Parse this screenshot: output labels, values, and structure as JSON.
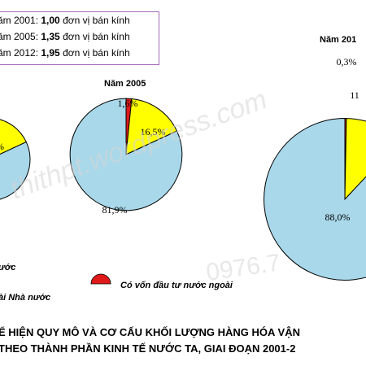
{
  "scale_note": [
    {
      "prefix": "ăm 2001: ",
      "value": "1,00",
      "suffix": " đơn vị bán kính"
    },
    {
      "prefix": "ăm 2005: ",
      "value": "1,35",
      "suffix": " đơn vị bán kính"
    },
    {
      "prefix": "ăm 2012: ",
      "value": "1,95",
      "suffix": " đơn vị bán kính"
    }
  ],
  "chart_data": {
    "type": "pie",
    "title_lines": [
      "Ể HIỆN QUY MÔ VÀ CƠ CẤU KHỐI LƯỢNG HÀNG HÓA VẬN",
      "THEO THÀNH PHẦN KINH TẾ NƯỚC TA, GIAI ĐOẠN 2001-2"
    ],
    "categories": [
      "Nhà nước",
      "Ngoài Nhà nước",
      "Có vốn đầu tư nước ngoài"
    ],
    "colors": {
      "Nhà nước": "#a8d8ea",
      "Ngoài Nhà nước": "#ffff00",
      "Có vốn đầu tư nước ngoài": "#e0191b"
    },
    "pies": [
      {
        "year_label": "",
        "radius_units": 1.0,
        "slices": [
          {
            "category": "Nhà nước",
            "value": 81.9,
            "label": ""
          },
          {
            "category": "Ngoài Nhà nước",
            "value": 16.5,
            "label": "%"
          },
          {
            "category": "Có vốn đầu tư nước ngoài",
            "value": 1.6,
            "label": ""
          }
        ]
      },
      {
        "year_label": "Năm 2005",
        "radius_units": 1.35,
        "slices": [
          {
            "category": "Nhà nước",
            "value": 81.9,
            "label": "81,9%"
          },
          {
            "category": "Ngoài Nhà nước",
            "value": 16.5,
            "label": "16,5%"
          },
          {
            "category": "Có vốn đầu tư nước ngoài",
            "value": 1.6,
            "label": "1,6%"
          }
        ]
      },
      {
        "year_label": "Năm 201",
        "radius_units": 1.95,
        "slices": [
          {
            "category": "Nhà nước",
            "value": 88.0,
            "label": "88,0%"
          },
          {
            "category": "Ngoài Nhà nước",
            "value": 11.7,
            "label": "11"
          },
          {
            "category": "Có vốn đầu tư nước ngoài",
            "value": 0.3,
            "label": "0,3%"
          }
        ]
      }
    ],
    "legend": [
      {
        "category": "Nhà nước",
        "text": "ước"
      },
      {
        "category": "Ngoài Nhà nước",
        "text": "ài Nhà nước"
      },
      {
        "category": "Có vốn đầu tư nước ngoài",
        "text": "Có vốn đầu tư nước ngoài"
      }
    ]
  },
  "watermark": {
    "text": "thithpt.wordpress.com",
    "phone": "0976.7"
  }
}
